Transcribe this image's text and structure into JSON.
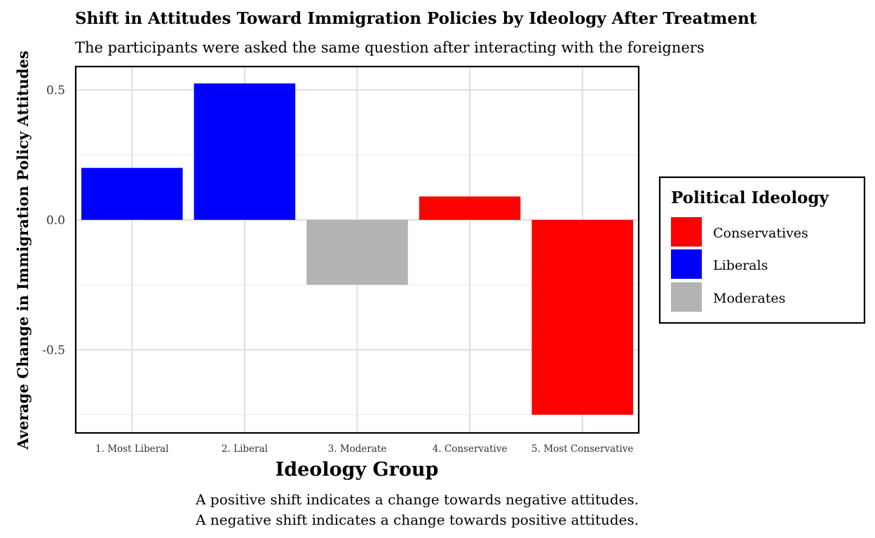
{
  "chart_data": {
    "type": "bar",
    "title": "Shift in Attitudes Toward Immigration Policies by Ideology After Treatment",
    "subtitle": "The participants were asked the same question after interacting with the foreigners",
    "xlabel": "Ideology Group",
    "ylabel": "Average Change in Immigration Policy Attitudes",
    "categories": [
      "1. Most Liberal",
      "2. Liberal",
      "3. Moderate",
      "4. Conservative",
      "5. Most Conservative"
    ],
    "values": [
      0.2,
      0.525,
      -0.25,
      0.09,
      -0.75
    ],
    "groups": [
      "Liberals",
      "Liberals",
      "Moderates",
      "Conservatives",
      "Conservatives"
    ],
    "ylim": [
      -0.82,
      0.59
    ],
    "yticks": [
      {
        "value": 0.5,
        "label": "0.5"
      },
      {
        "value": 0.0,
        "label": "0.0"
      },
      {
        "value": -0.5,
        "label": "-0.5"
      }
    ],
    "y_minor_gridlines": [
      0.25,
      -0.25,
      -0.75
    ],
    "grid": true,
    "legend": {
      "title": "Political Ideology",
      "position": "right",
      "items": [
        {
          "label": "Conservatives",
          "color": "#ff0000"
        },
        {
          "label": "Liberals",
          "color": "#0000ff"
        },
        {
          "label": "Moderates",
          "color": "#b3b3b3"
        }
      ]
    },
    "colors": {
      "Conservatives": "#ff0000",
      "Liberals": "#0000ff",
      "Moderates": "#b3b3b3"
    },
    "caption": [
      "A positive shift indicates a change towards negative attitudes.",
      "A negative shift indicates a change towards positive attitudes."
    ]
  }
}
